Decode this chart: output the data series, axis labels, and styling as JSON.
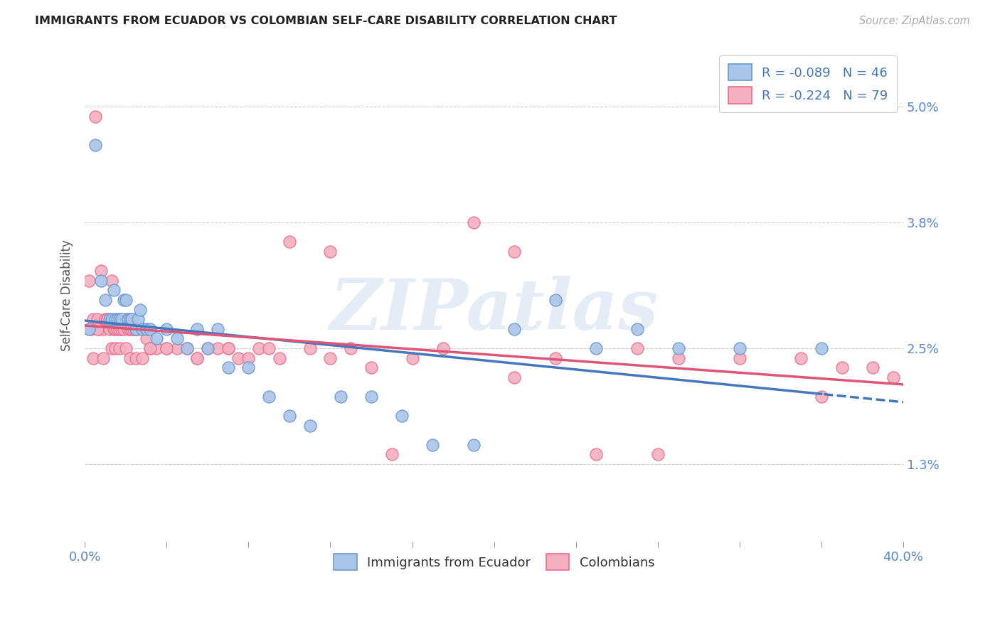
{
  "title": "IMMIGRANTS FROM ECUADOR VS COLOMBIAN SELF-CARE DISABILITY CORRELATION CHART",
  "source": "Source: ZipAtlas.com",
  "ylabel": "Self-Care Disability",
  "yticks": [
    "1.3%",
    "2.5%",
    "3.8%",
    "5.0%"
  ],
  "ytick_vals": [
    1.3,
    2.5,
    3.8,
    5.0
  ],
  "xlim": [
    0.0,
    40.0
  ],
  "ylim": [
    0.5,
    5.6
  ],
  "legend1_label": "R = -0.089   N = 46",
  "legend2_label": "R = -0.224   N = 79",
  "legend_bottom1": "Immigrants from Ecuador",
  "legend_bottom2": "Colombians",
  "ecuador_color": "#aac4ea",
  "colombian_color": "#f4b0c0",
  "ecuador_edge_color": "#6699cc",
  "colombian_edge_color": "#e87090",
  "ecuador_line_color": "#4477bb",
  "colombian_line_color": "#dd5577",
  "watermark": "ZIPatlas",
  "ecuador_x": [
    0.2,
    0.5,
    0.8,
    1.0,
    1.2,
    1.3,
    1.4,
    1.5,
    1.6,
    1.7,
    1.8,
    1.9,
    2.0,
    2.1,
    2.2,
    2.3,
    2.5,
    2.6,
    2.7,
    2.8,
    3.0,
    3.2,
    3.5,
    4.0,
    4.5,
    5.0,
    5.5,
    6.0,
    6.5,
    7.0,
    8.0,
    9.0,
    10.0,
    11.0,
    12.5,
    14.0,
    15.5,
    17.0,
    19.0,
    21.0,
    23.0,
    25.0,
    27.0,
    29.0,
    32.0,
    36.0
  ],
  "ecuador_y": [
    2.7,
    4.6,
    3.2,
    3.0,
    2.8,
    2.8,
    3.1,
    2.8,
    2.8,
    2.8,
    2.8,
    3.0,
    3.0,
    2.8,
    2.8,
    2.8,
    2.7,
    2.8,
    2.9,
    2.7,
    2.7,
    2.7,
    2.6,
    2.7,
    2.6,
    2.5,
    2.7,
    2.5,
    2.7,
    2.3,
    2.3,
    2.0,
    1.8,
    1.7,
    2.0,
    2.0,
    1.8,
    1.5,
    1.5,
    2.7,
    3.0,
    2.5,
    2.7,
    2.5,
    2.5,
    2.5
  ],
  "colombian_x": [
    0.2,
    0.3,
    0.4,
    0.5,
    0.6,
    0.7,
    0.8,
    0.9,
    1.0,
    1.1,
    1.2,
    1.3,
    1.4,
    1.5,
    1.6,
    1.7,
    1.8,
    1.9,
    2.0,
    2.1,
    2.2,
    2.3,
    2.4,
    2.5,
    2.6,
    2.8,
    3.0,
    3.2,
    3.5,
    4.0,
    4.5,
    5.0,
    5.5,
    6.0,
    6.5,
    7.0,
    7.5,
    8.0,
    8.5,
    9.0,
    10.0,
    11.0,
    12.0,
    13.0,
    14.0,
    15.0,
    16.0,
    17.5,
    19.0,
    21.0,
    23.0,
    25.0,
    27.0,
    29.0,
    32.0,
    35.0,
    37.0,
    38.5,
    39.5,
    0.4,
    0.6,
    0.9,
    1.1,
    1.3,
    1.5,
    1.7,
    2.0,
    2.2,
    2.5,
    2.8,
    3.2,
    4.0,
    5.5,
    7.0,
    9.5,
    12.0,
    21.0,
    28.0,
    36.0
  ],
  "colombian_y": [
    3.2,
    2.7,
    2.8,
    4.9,
    2.8,
    2.7,
    3.3,
    2.7,
    2.8,
    2.8,
    2.7,
    3.2,
    2.7,
    2.7,
    2.7,
    2.7,
    2.7,
    2.7,
    2.8,
    2.7,
    2.7,
    2.7,
    2.7,
    2.7,
    2.7,
    2.7,
    2.6,
    2.5,
    2.5,
    2.5,
    2.5,
    2.5,
    2.4,
    2.5,
    2.5,
    2.5,
    2.4,
    2.4,
    2.5,
    2.5,
    3.6,
    2.5,
    3.5,
    2.5,
    2.3,
    1.4,
    2.4,
    2.5,
    3.8,
    3.5,
    2.4,
    1.4,
    2.5,
    2.4,
    2.4,
    2.4,
    2.3,
    2.3,
    2.2,
    2.4,
    2.7,
    2.4,
    2.8,
    2.5,
    2.5,
    2.5,
    2.5,
    2.4,
    2.4,
    2.4,
    2.5,
    2.5,
    2.4,
    2.5,
    2.4,
    2.4,
    2.2,
    1.4,
    2.0
  ]
}
